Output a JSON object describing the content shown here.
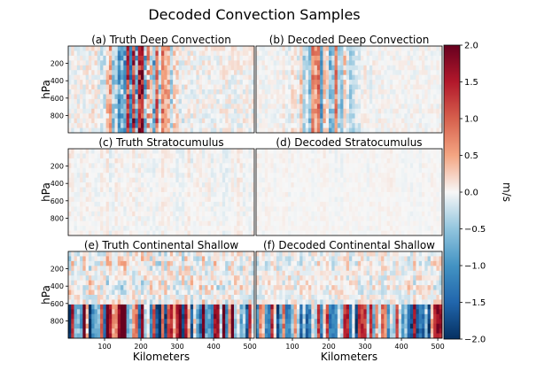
{
  "figure": {
    "suptitle": "Decoded Convection Samples"
  },
  "chart_data": {
    "type": "heatmap",
    "x_ticks": [
      100,
      200,
      300,
      400,
      500
    ],
    "xlim": [
      0,
      512
    ],
    "y_ticks": [
      200,
      400,
      600,
      800
    ],
    "ylim": [
      1000,
      0
    ],
    "xlabel": "Kilometers",
    "ylabel": "hPa",
    "colorbar": {
      "label": "m/s",
      "min": -2.0,
      "max": 2.0,
      "ticks": [
        "2.0",
        "1.5",
        "1.0",
        "0.5",
        "0.0",
        "−0.5",
        "−1.0",
        "−1.5",
        "−2.0"
      ],
      "colormap": "RdBu_r",
      "color_low": "#053061",
      "color_mid": "#f7f7f7",
      "color_high": "#67001f"
    },
    "panels": [
      {
        "title": "(a) Truth Deep Convection",
        "intensity": 1.0
      },
      {
        "title": "(b) Decoded Deep Convection",
        "intensity": 0.55
      },
      {
        "title": "(c) Truth Stratocumulus",
        "intensity": 0.22
      },
      {
        "title": "(d) Decoded Stratocumulus",
        "intensity": 0.12
      },
      {
        "title": "(e) Truth Continental Shallow",
        "intensity": 0.9
      },
      {
        "title": "(f) Decoded Continental Shallow",
        "intensity": 0.7
      }
    ]
  }
}
